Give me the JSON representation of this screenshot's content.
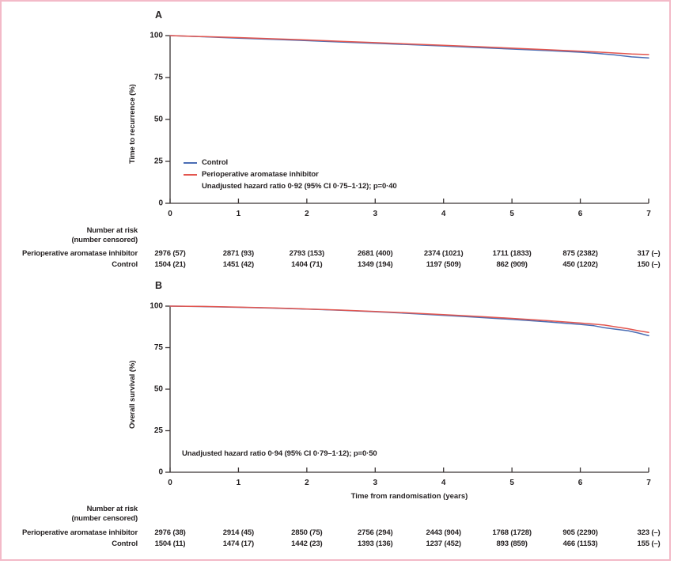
{
  "figure": {
    "border_color": "#f3bac8",
    "text_color": "#262223",
    "axis_color": "#3a3434"
  },
  "chart_data": [
    {
      "type": "line",
      "panel_label": "A",
      "title": "",
      "xlabel": "",
      "ylabel": "Time to recurrence (%)",
      "xlim": [
        0,
        7
      ],
      "ylim": [
        0,
        100
      ],
      "xticks": [
        "0",
        "1",
        "2",
        "3",
        "4",
        "5",
        "6",
        "7"
      ],
      "yticks": [
        "0",
        "25",
        "50",
        "75",
        "100"
      ],
      "grid": "off",
      "legend_position": "inside-lower-left",
      "legend": [
        {
          "name": "Control",
          "color": "#4a6db4"
        },
        {
          "name": "Perioperative aromatase inhibitor",
          "color": "#e3564f"
        }
      ],
      "annotation": "Unadjusted hazard ratio 0·92 (95% CI 0·75–1·12); p=0·40",
      "series": [
        {
          "name": "Control",
          "color": "#4a6db4",
          "x": [
            0,
            0.5,
            1,
            1.5,
            2,
            2.5,
            3,
            3.5,
            4,
            4.5,
            5,
            5.5,
            6,
            6.25,
            6.5,
            6.75,
            7
          ],
          "y": [
            100,
            99.3,
            98.5,
            97.8,
            97.0,
            96.2,
            95.4,
            94.6,
            93.8,
            92.9,
            92.0,
            91.1,
            90.1,
            89.4,
            88.5,
            87.3,
            86.7
          ]
        },
        {
          "name": "Perioperative aromatase inhibitor",
          "color": "#e3564f",
          "x": [
            0,
            0.5,
            1,
            1.5,
            2,
            2.5,
            3,
            3.5,
            4,
            4.5,
            5,
            5.5,
            6,
            6.25,
            6.5,
            6.75,
            7
          ],
          "y": [
            100,
            99.4,
            98.8,
            98.1,
            97.4,
            96.6,
            95.8,
            95.0,
            94.2,
            93.4,
            92.5,
            91.6,
            90.7,
            90.2,
            89.6,
            89.0,
            88.7
          ]
        }
      ],
      "at_risk": {
        "title": "Number at risk",
        "subtitle": "(number censored)",
        "rows": [
          {
            "label": "Perioperative aromatase inhibitor",
            "values": [
              "2976 (57)",
              "2871 (93)",
              "2793 (153)",
              "2681 (400)",
              "2374 (1021)",
              "1711 (1833)",
              "875 (2382)",
              "317 (–)"
            ]
          },
          {
            "label": "Control",
            "values": [
              "1504 (21)",
              "1451 (42)",
              "1404 (71)",
              "1349 (194)",
              "1197 (509)",
              "862 (909)",
              "450 (1202)",
              "150 (–)"
            ]
          }
        ]
      }
    },
    {
      "type": "line",
      "panel_label": "B",
      "title": "",
      "xlabel": "Time from randomisation (years)",
      "ylabel": "Overall survival (%)",
      "xlim": [
        0,
        7
      ],
      "ylim": [
        0,
        100
      ],
      "xticks": [
        "0",
        "1",
        "2",
        "3",
        "4",
        "5",
        "6",
        "7"
      ],
      "yticks": [
        "0",
        "25",
        "50",
        "75",
        "100"
      ],
      "grid": "off",
      "legend_position": "none",
      "legend": [
        {
          "name": "Control",
          "color": "#4a6db4"
        },
        {
          "name": "Perioperative aromatase inhibitor",
          "color": "#e3564f"
        }
      ],
      "annotation": "Unadjusted hazard ratio 0·94 (95% CI 0·79–1·12); p=0·50",
      "series": [
        {
          "name": "Control",
          "color": "#4a6db4",
          "x": [
            0,
            0.5,
            1,
            1.5,
            2,
            2.5,
            3,
            3.5,
            4,
            4.5,
            5,
            5.5,
            6,
            6.2,
            6.35,
            6.5,
            6.7,
            6.85,
            7
          ],
          "y": [
            100,
            99.7,
            99.3,
            98.8,
            98.2,
            97.5,
            96.6,
            95.6,
            94.5,
            93.3,
            92.0,
            90.6,
            89.0,
            88.2,
            87.0,
            86.2,
            85.2,
            83.8,
            82.2
          ]
        },
        {
          "name": "Perioperative aromatase inhibitor",
          "color": "#e3564f",
          "x": [
            0,
            0.5,
            1,
            1.5,
            2,
            2.5,
            3,
            3.5,
            4,
            4.5,
            5,
            5.5,
            6,
            6.2,
            6.35,
            6.5,
            6.7,
            6.85,
            7
          ],
          "y": [
            100,
            99.8,
            99.4,
            98.9,
            98.3,
            97.6,
            96.8,
            95.9,
            94.9,
            93.8,
            92.6,
            91.3,
            89.8,
            89.2,
            88.6,
            87.6,
            86.4,
            85.2,
            84.2
          ]
        }
      ],
      "at_risk": {
        "title": "Number at risk",
        "subtitle": "(number censored)",
        "rows": [
          {
            "label": "Perioperative aromatase inhibitor",
            "values": [
              "2976 (38)",
              "2914 (45)",
              "2850 (75)",
              "2756 (294)",
              "2443 (904)",
              "1768 (1728)",
              "905 (2290)",
              "323 (–)"
            ]
          },
          {
            "label": "Control",
            "values": [
              "1504 (11)",
              "1474 (17)",
              "1442 (23)",
              "1393 (136)",
              "1237 (452)",
              "893 (859)",
              "466 (1153)",
              "155 (–)"
            ]
          }
        ]
      }
    }
  ]
}
